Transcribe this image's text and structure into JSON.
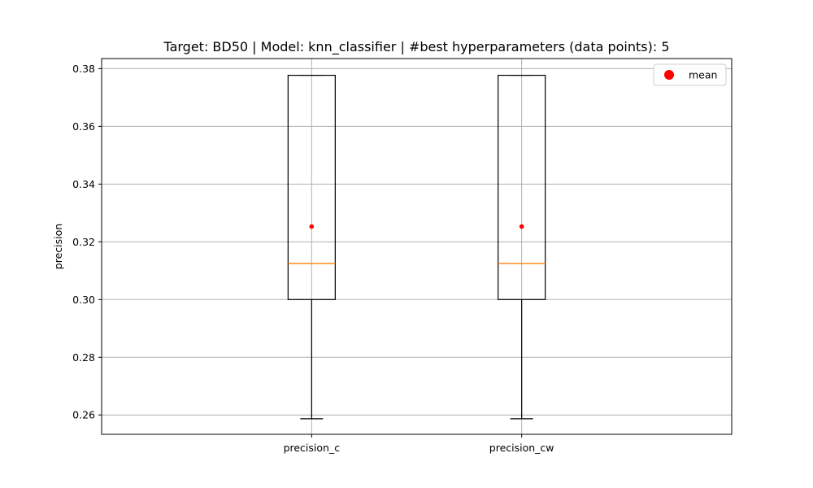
{
  "chart_data": {
    "type": "box",
    "title": "Target: BD50 | Model: knn_classifier | #best hyperparameters (data points): 5",
    "xlabel": "",
    "ylabel": "precision",
    "ylim": [
      0.2533,
      0.3835
    ],
    "yticks": [
      0.26,
      0.28,
      0.3,
      0.32,
      0.34,
      0.36,
      0.38
    ],
    "ytick_labels": [
      "0.26",
      "0.28",
      "0.30",
      "0.32",
      "0.34",
      "0.36",
      "0.38"
    ],
    "categories": [
      "precision_c",
      "precision_cw"
    ],
    "grid": true,
    "legend": {
      "position": "top-right",
      "entries": [
        {
          "label": "mean",
          "color": "#ff0000",
          "marker": "circle"
        }
      ]
    },
    "boxes": [
      {
        "name": "precision_c",
        "whisker_low": 0.2587,
        "q1": 0.3,
        "median": 0.3125,
        "q3": 0.3777,
        "whisker_high": 0.3777,
        "mean": 0.3253
      },
      {
        "name": "precision_cw",
        "whisker_low": 0.2587,
        "q1": 0.3,
        "median": 0.3125,
        "q3": 0.3777,
        "whisker_high": 0.3777,
        "mean": 0.3253
      }
    ],
    "colors": {
      "box": "#000000",
      "median": "#ff7f0e",
      "mean": "#ff0000",
      "grid": "#b0b0b0"
    }
  }
}
